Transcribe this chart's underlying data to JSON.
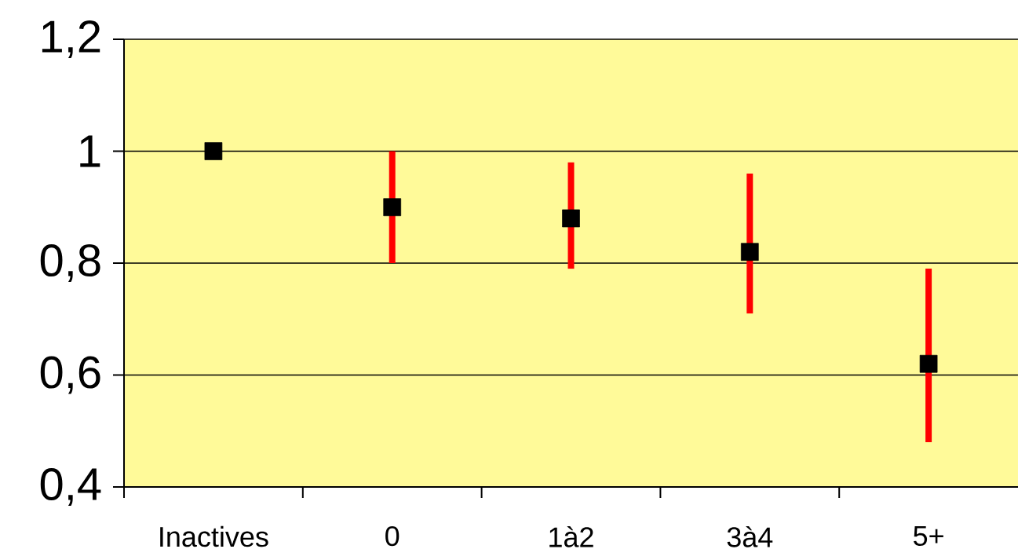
{
  "chart_data": {
    "type": "scatter",
    "categories": [
      "Inactives",
      "0",
      "1à2",
      "3à4",
      "5+"
    ],
    "series": [
      {
        "color": "#000000",
        "values": [
          1.0,
          0.9,
          0.88,
          0.82,
          0.62
        ],
        "errors": [
          null,
          [
            0.8,
            1.0
          ],
          [
            0.79,
            0.98
          ],
          [
            0.71,
            0.96
          ],
          [
            0.48,
            0.79
          ]
        ]
      }
    ],
    "ylim": [
      0.4,
      1.2
    ],
    "yticks": [
      {
        "value": 0.4,
        "label": "0,4"
      },
      {
        "value": 0.6,
        "label": "0,6"
      },
      {
        "value": 0.8,
        "label": "0,8"
      },
      1,
      {
        "value": 1.2,
        "label": "1,2"
      }
    ],
    "grid": "y",
    "marker": "square"
  }
}
